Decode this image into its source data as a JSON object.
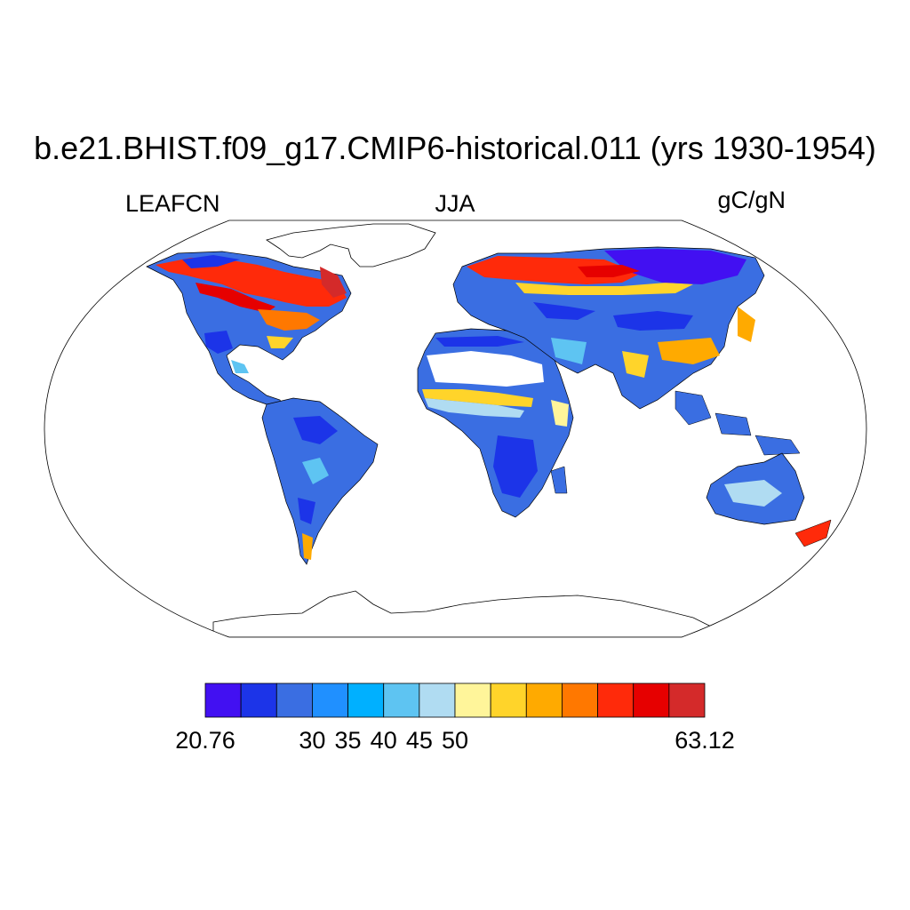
{
  "title": "b.e21.BHIST.f09_g17.CMIP6-historical.011 (yrs 1930-1954)",
  "left_string": "LEAFCN",
  "center_string": "JJA",
  "right_string": "gC/gN",
  "projection": "Robinson",
  "colorbar": {
    "colors": [
      "#4210f2",
      "#1c34e8",
      "#3a6ee2",
      "#2090ff",
      "#00b0ff",
      "#5ec4f2",
      "#b0dcf2",
      "#fff59a",
      "#ffd42a",
      "#ffaa00",
      "#ff7800",
      "#ff2a0a",
      "#e60000",
      "#d42a2a"
    ],
    "labels": [
      "20.76",
      "30",
      "35",
      "40",
      "45",
      "50",
      "63.12"
    ],
    "label_positions": [
      0,
      3,
      4,
      5,
      6,
      7,
      10
    ]
  },
  "legend": {
    "left_label": "LEAFCN",
    "units": "gC/gN",
    "season": "JJA"
  }
}
